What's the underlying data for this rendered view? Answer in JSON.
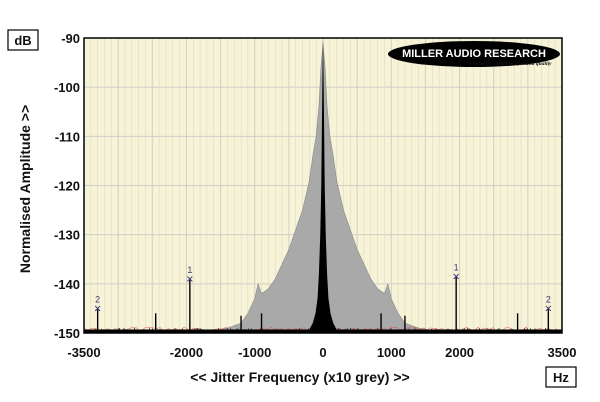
{
  "chart_data": {
    "type": "area",
    "xlabel": "<< Jitter Frequency (x10 grey) >>",
    "ylabel": "Normalised Amplitude >>",
    "x_unit": "Hz",
    "y_unit": "dB",
    "xlim": [
      -3500,
      3500
    ],
    "ylim": [
      -150,
      -90
    ],
    "x_ticks": [
      -3500,
      -2000,
      -1000,
      0,
      1000,
      2000,
      3500
    ],
    "y_ticks": [
      -90,
      -100,
      -110,
      -120,
      -130,
      -140,
      -150
    ],
    "grid": true,
    "series": [
      {
        "kind": "grey",
        "points": [
          [
            -3500,
            -149.5
          ],
          [
            -1600,
            -149.5
          ],
          [
            -1400,
            -149
          ],
          [
            -1200,
            -148
          ],
          [
            -1100,
            -146
          ],
          [
            -1000,
            -143
          ],
          [
            -950,
            -140
          ],
          [
            -900,
            -142
          ],
          [
            -800,
            -141
          ],
          [
            -700,
            -139
          ],
          [
            -600,
            -136
          ],
          [
            -500,
            -133
          ],
          [
            -400,
            -129
          ],
          [
            -300,
            -125
          ],
          [
            -250,
            -122
          ],
          [
            -200,
            -119
          ],
          [
            -150,
            -114
          ],
          [
            -100,
            -110
          ],
          [
            -60,
            -104
          ],
          [
            -30,
            -96
          ],
          [
            0,
            -91
          ],
          [
            30,
            -96
          ],
          [
            60,
            -104
          ],
          [
            100,
            -110
          ],
          [
            150,
            -114
          ],
          [
            200,
            -119
          ],
          [
            250,
            -122
          ],
          [
            300,
            -125
          ],
          [
            400,
            -129
          ],
          [
            500,
            -133
          ],
          [
            600,
            -136
          ],
          [
            700,
            -139
          ],
          [
            800,
            -141
          ],
          [
            900,
            -142
          ],
          [
            950,
            -140
          ],
          [
            1000,
            -143
          ],
          [
            1100,
            -146
          ],
          [
            1200,
            -148
          ],
          [
            1400,
            -149
          ],
          [
            1600,
            -149.5
          ],
          [
            3500,
            -149.5
          ]
        ]
      },
      {
        "kind": "black",
        "points": [
          [
            -3500,
            -149.3
          ],
          [
            -200,
            -149.3
          ],
          [
            -150,
            -148
          ],
          [
            -110,
            -146
          ],
          [
            -80,
            -143
          ],
          [
            -60,
            -138
          ],
          [
            -40,
            -130
          ],
          [
            -25,
            -120
          ],
          [
            -10,
            -100
          ],
          [
            0,
            -90
          ],
          [
            10,
            -100
          ],
          [
            25,
            -120
          ],
          [
            40,
            -130
          ],
          [
            60,
            -138
          ],
          [
            80,
            -143
          ],
          [
            110,
            -146
          ],
          [
            150,
            -148
          ],
          [
            200,
            -149.3
          ],
          [
            3500,
            -149.3
          ]
        ]
      }
    ],
    "spikes": [
      {
        "x": -3300,
        "y": -145
      },
      {
        "x": -1950,
        "y": -139
      },
      {
        "x": -2450,
        "y": -146
      },
      {
        "x": -1200,
        "y": -146.5
      },
      {
        "x": -900,
        "y": -146
      },
      {
        "x": 850,
        "y": -146
      },
      {
        "x": 1200,
        "y": -146.5
      },
      {
        "x": 1950,
        "y": -138.5
      },
      {
        "x": 2850,
        "y": -146
      },
      {
        "x": 3300,
        "y": -145
      }
    ],
    "annotations": [
      {
        "text": "1",
        "x": -1950,
        "y": -139
      },
      {
        "text": "1",
        "x": 1950,
        "y": -138.5
      },
      {
        "text": "2",
        "x": -3300,
        "y": -145
      },
      {
        "text": "2",
        "x": 3300,
        "y": -145
      }
    ],
    "colors": {
      "plot_bg": "#f7f3d6",
      "grid": "#cfcfc8",
      "grey_fill": "#a9a9a9",
      "black_fill": "#000000",
      "marker": "#3a3a7a",
      "noise_red": "#e05050"
    }
  },
  "logo": {
    "main_text": "MILLER AUDIO RESEARCH",
    "tagline": "Setting the measure of sound quality"
  }
}
